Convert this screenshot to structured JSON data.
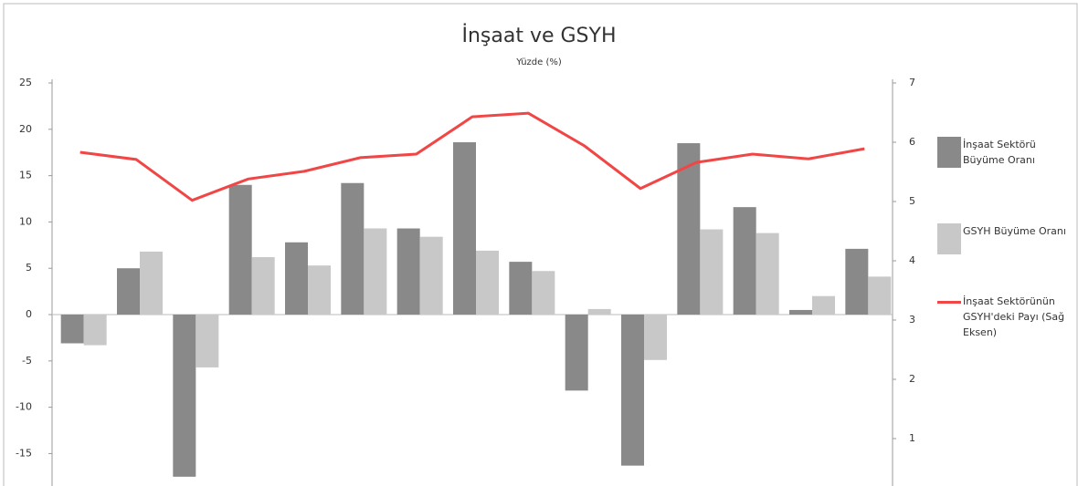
{
  "chart_data": {
    "type": "bar",
    "title": "İnşaat ve GSYH",
    "subtitle": "Yüzde (%)",
    "categories": [
      null,
      null,
      null,
      null,
      null,
      null,
      null,
      null,
      null,
      null,
      null,
      null,
      null,
      null,
      null
    ],
    "series": [
      {
        "name": "İnşaat Sektörü Büyüme Oranı",
        "type": "bar",
        "color": "#898989",
        "values": [
          -3.1,
          5,
          -17.5,
          14,
          7.8,
          14.2,
          9.3,
          18.6,
          5.7,
          -8.2,
          -16.3,
          18.5,
          11.6,
          0.5,
          7.1
        ]
      },
      {
        "name": "GSYH Büyüme Oranı",
        "type": "bar",
        "color": "#c8c8c8",
        "values": [
          -3.3,
          6.8,
          -5.7,
          6.2,
          5.3,
          9.3,
          8.4,
          6.9,
          4.7,
          0.6,
          -4.9,
          9.2,
          8.8,
          2.0,
          4.1
        ]
      },
      {
        "name": "İnşaat Sektörünün GSYH'deki Payı (Sağ Eksen)",
        "type": "line",
        "axis": "y2",
        "color": "#f04646",
        "values": [
          5.83,
          5.71,
          5.02,
          5.38,
          5.51,
          5.74,
          5.8,
          6.43,
          6.49,
          5.94,
          5.22,
          5.66,
          5.8,
          5.72,
          5.89
        ]
      }
    ],
    "ylim": [
      -18.5,
      25
    ],
    "yticks": [
      25,
      20,
      15,
      10,
      5,
      0,
      -5,
      -10,
      -15
    ],
    "y2lim": [
      0.2,
      7
    ],
    "y2ticks": [
      7,
      6,
      5,
      4,
      3,
      2,
      1
    ],
    "legend": "right"
  }
}
